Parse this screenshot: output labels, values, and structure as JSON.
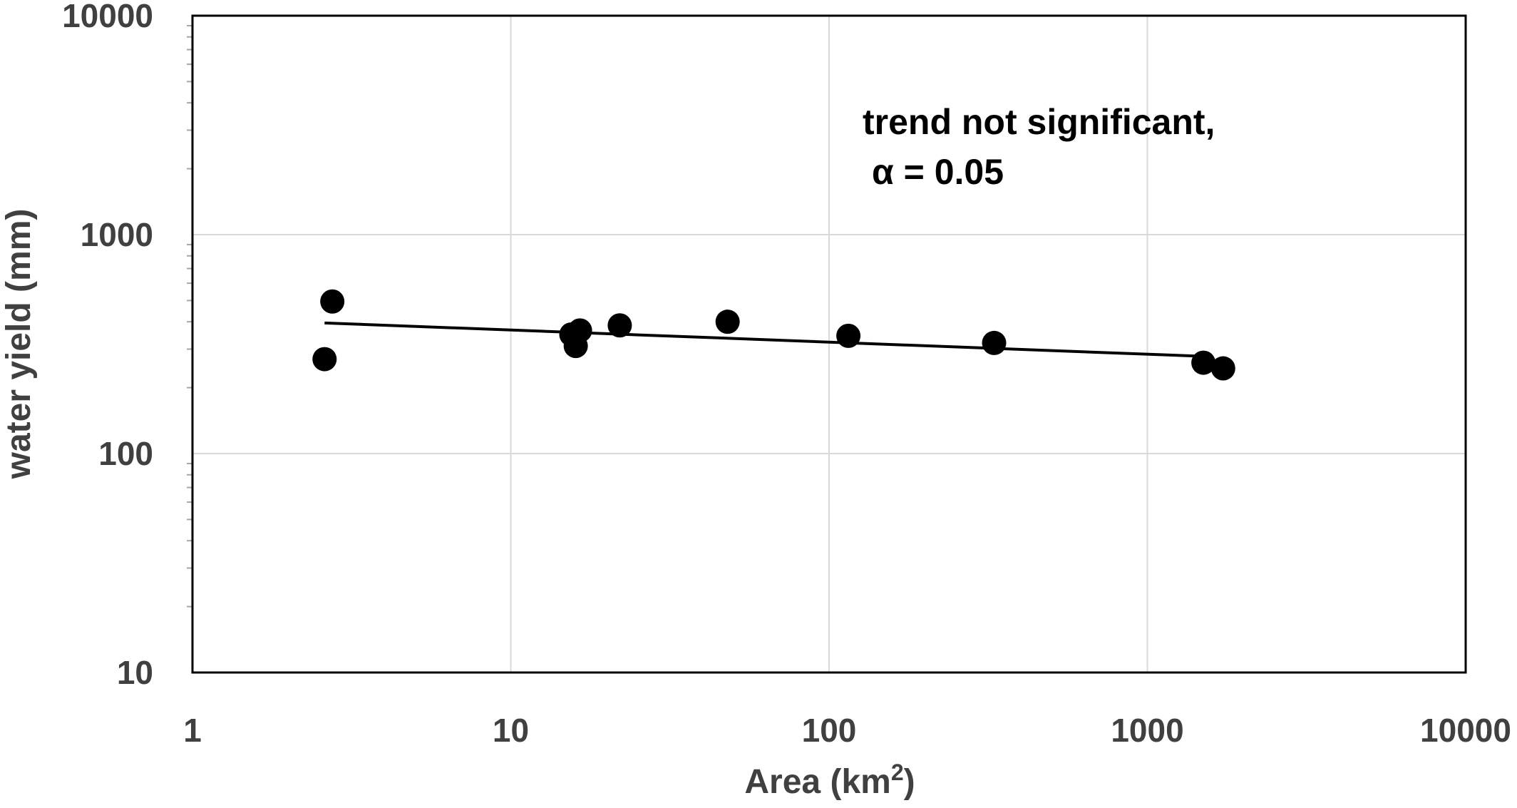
{
  "chart_data": {
    "type": "scatter",
    "title": "",
    "xlabel": "Area (km",
    "xlabel_sup": "2",
    "xlabel_suffix": ")",
    "ylabel": "water yield (mm)",
    "xscale": "log",
    "yscale": "log",
    "xlim": [
      1,
      10000
    ],
    "ylim": [
      10,
      10000
    ],
    "x_ticks": [
      1,
      10,
      100,
      1000,
      10000
    ],
    "y_ticks": [
      10,
      100,
      1000,
      10000
    ],
    "x_tick_labels": [
      "1",
      "10",
      "100",
      "1000",
      "10000"
    ],
    "y_tick_labels": [
      "10",
      "100",
      "1000",
      "10000"
    ],
    "grid": true,
    "legend": "none",
    "series": [
      {
        "x": [
          2.6,
          2.75,
          15.5,
          16.0,
          16.5,
          22,
          48,
          115,
          330,
          1500,
          1730
        ],
        "y": [
          270,
          495,
          350,
          310,
          365,
          385,
          400,
          345,
          320,
          260,
          245
        ]
      }
    ],
    "trendline": {
      "type": "power",
      "x": [
        2.6,
        1500
      ],
      "y": [
        395,
        278
      ]
    },
    "annotations": [
      "trend not significant,",
      "α = 0.05"
    ],
    "colors": {
      "marker": "#000000",
      "trendline": "#000000",
      "grid": "#d9d9d9",
      "plot_border": "#000000",
      "tick_text": "#404040"
    }
  }
}
